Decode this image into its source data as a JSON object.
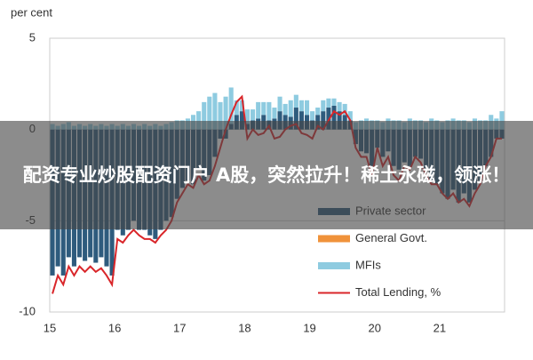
{
  "chart_data": {
    "type": "bar",
    "y_label": "per cent",
    "categories": [
      "15",
      null,
      null,
      null,
      null,
      null,
      null,
      null,
      null,
      null,
      null,
      null,
      "16",
      null,
      null,
      null,
      null,
      null,
      null,
      null,
      null,
      null,
      null,
      null,
      "17",
      null,
      null,
      null,
      null,
      null,
      null,
      null,
      null,
      null,
      null,
      null,
      "18",
      null,
      null,
      null,
      null,
      null,
      null,
      null,
      null,
      null,
      null,
      null,
      "19",
      null,
      null,
      null,
      null,
      null,
      null,
      null,
      null,
      null,
      null,
      null,
      "20",
      null,
      null,
      null,
      null,
      null,
      null,
      null,
      null,
      null,
      null,
      null,
      "21",
      null,
      null,
      null,
      null,
      null,
      null,
      null,
      null,
      null,
      null,
      null
    ],
    "ylim": [
      -10,
      5
    ],
    "yticks": [
      -10,
      -5,
      0,
      5
    ],
    "grid": true,
    "series": [
      {
        "name": "Private sector",
        "color": "#2e5b7d",
        "values": [
          -8,
          -7.5,
          -8,
          -7,
          -7.5,
          -7,
          -7.2,
          -7,
          -7.3,
          -7,
          -7.5,
          -8,
          -5.5,
          -5.8,
          -5.5,
          -5,
          -5.5,
          -5.5,
          -5.8,
          -6,
          -5.5,
          -5,
          -4.8,
          -3.8,
          -3.2,
          -2.8,
          -3,
          -2.2,
          -2.8,
          -2.5,
          -1.5,
          -0.5,
          -0.5,
          0.3,
          0.8,
          1,
          0.3,
          0.5,
          0.6,
          0.8,
          0.5,
          0.6,
          1,
          0.8,
          0.7,
          1.2,
          1,
          0.8,
          0.5,
          0.8,
          1,
          1.2,
          1.3,
          1,
          0.8,
          0.5,
          -0.8,
          -1.2,
          -1.3,
          -2,
          -1,
          -1.5,
          -1.2,
          -2,
          -2.2,
          -1.8,
          -2,
          -1.5,
          -1.6,
          -2.2,
          -2.8,
          -3,
          -3.5,
          -3.8,
          -3.3,
          -4,
          -3.5,
          -4,
          -3.3,
          -2.8,
          -2,
          -1.5,
          -0.5,
          -0.5
        ]
      },
      {
        "name": "General Govt.",
        "color": "#f0923a",
        "values": [
          0,
          0,
          0,
          0,
          0,
          0,
          0,
          0,
          0,
          0,
          0,
          0,
          0,
          0,
          0,
          0,
          0,
          0,
          0,
          0,
          0,
          0,
          0,
          0,
          0,
          0,
          0,
          0,
          0,
          0,
          0,
          0,
          0,
          0,
          0,
          0,
          0,
          0,
          0,
          0,
          0,
          0,
          0,
          0,
          0,
          0,
          0,
          0,
          0,
          0,
          0,
          0,
          0,
          0,
          0,
          0,
          0,
          0,
          0,
          0,
          0,
          0,
          0,
          0,
          0,
          0,
          0,
          0,
          0,
          0,
          0,
          0,
          0,
          0,
          0,
          0,
          0,
          0,
          0,
          0,
          0,
          0,
          0,
          0
        ]
      },
      {
        "name": "MFIs",
        "color": "#8ecbe0",
        "values": [
          0.3,
          0.2,
          0.3,
          0.4,
          0.2,
          0.3,
          0.2,
          0.3,
          0.2,
          0.3,
          0.2,
          0.3,
          0.2,
          0.3,
          0.2,
          0.3,
          0.2,
          0.3,
          0.2,
          0.3,
          0.2,
          0.3,
          0.4,
          0.5,
          0.5,
          0.6,
          0.8,
          1,
          1.5,
          1.8,
          2,
          1.5,
          1.8,
          2,
          0.8,
          0.6,
          0.8,
          0.6,
          0.9,
          0.7,
          1,
          0.6,
          0.8,
          0.6,
          0.9,
          0.7,
          0.6,
          0.8,
          0.5,
          0.4,
          0.6,
          0.5,
          0.4,
          0.5,
          0.6,
          0.5,
          0.4,
          0.5,
          0.6,
          0.5,
          0.5,
          0.4,
          0.6,
          0.5,
          0.5,
          0.4,
          0.6,
          0.5,
          0.5,
          0.4,
          0.6,
          0.5,
          0.4,
          0.5,
          0.6,
          0.5,
          0.5,
          0.4,
          0.6,
          0.5,
          0.5,
          0.8,
          0.6,
          1
        ]
      },
      {
        "name": "Total Lending, %",
        "type": "line",
        "color": "#d9262a",
        "values": [
          -9,
          -8,
          -8.5,
          -7.5,
          -8,
          -7.5,
          -7.8,
          -7.5,
          -7.8,
          -7.6,
          -8,
          -8.5,
          -6,
          -6.2,
          -5.8,
          -5.5,
          -5.8,
          -6,
          -6,
          -6.2,
          -5.8,
          -5.5,
          -5,
          -4,
          -3.5,
          -3,
          -3.2,
          -2.5,
          -3,
          -2.8,
          -2,
          -1,
          0,
          0.8,
          1.5,
          1.8,
          -0.5,
          0,
          -0.3,
          -0.2,
          0.2,
          -0.5,
          -0.4,
          0,
          0.2,
          0.3,
          -0.2,
          -0.3,
          -0.5,
          0.2,
          0,
          0.5,
          1,
          0.8,
          1,
          0.5,
          -1,
          -1.5,
          -1.5,
          -2.5,
          -1,
          -2,
          -1.5,
          -2.5,
          -2.8,
          -2,
          -2.2,
          -1.5,
          -1.8,
          -2.5,
          -3,
          -3,
          -3.5,
          -3.8,
          -3.5,
          -4,
          -3.8,
          -4.2,
          -3.5,
          -3,
          -2,
          -1.5,
          -0.5,
          -0.5
        ]
      }
    ]
  },
  "banner": "配资专业炒股配资门户 A股，突然拉升！稀土永磁，领涨！"
}
